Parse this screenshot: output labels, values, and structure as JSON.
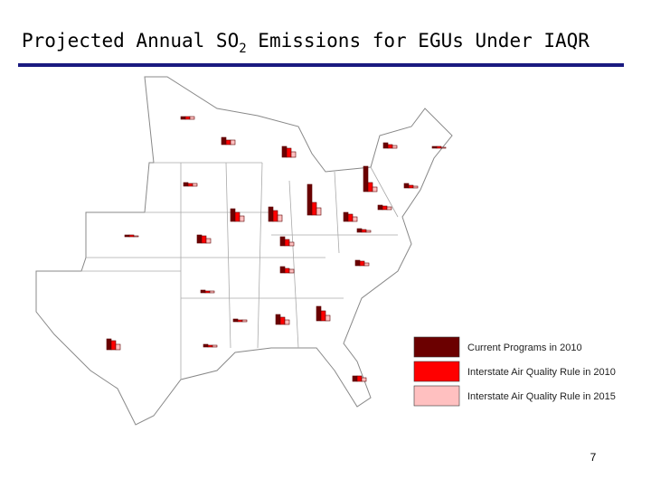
{
  "chart_data": {
    "type": "map-bars",
    "title": {
      "before": "Projected Annual SO",
      "sub": "2",
      "after": " Emissions for EGUs Under IAQR"
    },
    "series": [
      {
        "name": "Current Programs in 2010",
        "color": "#6b0000",
        "values": [
          3,
          8,
          12,
          6,
          2,
          28,
          5,
          4,
          14,
          16,
          34,
          10,
          5,
          2,
          9,
          10,
          4,
          7,
          6,
          3,
          3,
          11,
          16,
          12,
          3,
          6
        ]
      },
      {
        "name": "Interstate Air Quality Rule in 2010",
        "color": "#ff0000",
        "values": [
          3,
          5,
          10,
          4,
          2,
          10,
          3,
          3,
          10,
          12,
          14,
          8,
          4,
          2,
          8,
          7,
          3,
          5,
          5,
          2,
          2,
          8,
          11,
          10,
          2,
          6
        ]
      },
      {
        "name": "Interstate Air Quality Rule in 2015",
        "color": "#ffc0c0",
        "values": [
          3,
          5,
          6,
          3,
          1,
          5,
          2,
          3,
          6,
          7,
          8,
          5,
          3,
          1,
          5,
          4,
          2,
          4,
          3,
          2,
          2,
          5,
          6,
          6,
          2,
          4
        ]
      }
    ],
    "page_number": "7"
  }
}
